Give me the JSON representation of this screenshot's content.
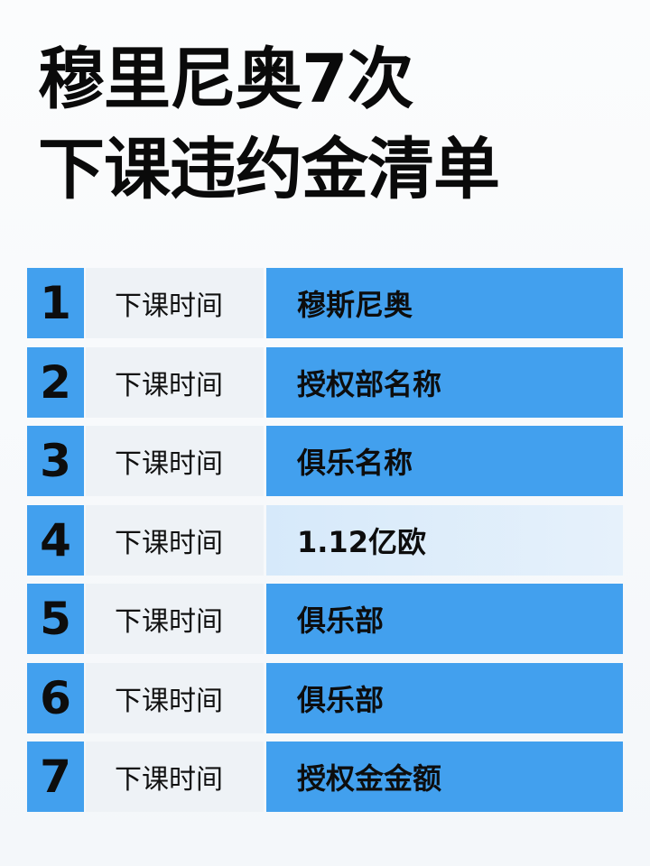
{
  "title": {
    "line1": "穆里尼奥7次",
    "line2": "下课违约金清单"
  },
  "colors": {
    "accent": "#42a0ee",
    "label_bg": "#eef2f6",
    "highlight_bg": "#dcecfa"
  },
  "rows": [
    {
      "num": "1",
      "label": "下课时间",
      "value": "穆斯尼奥"
    },
    {
      "num": "2",
      "label": "下课时间",
      "value": "授权部名称"
    },
    {
      "num": "3",
      "label": "下课时间",
      "value": "俱乐名称"
    },
    {
      "num": "4",
      "label": "下课时间",
      "value": "1.12亿欧"
    },
    {
      "num": "5",
      "label": "下课时间",
      "value": "俱乐部"
    },
    {
      "num": "6",
      "label": "下课时间",
      "value": "俱乐部"
    },
    {
      "num": "7",
      "label": "下课时间",
      "value": "授权金金额"
    }
  ]
}
